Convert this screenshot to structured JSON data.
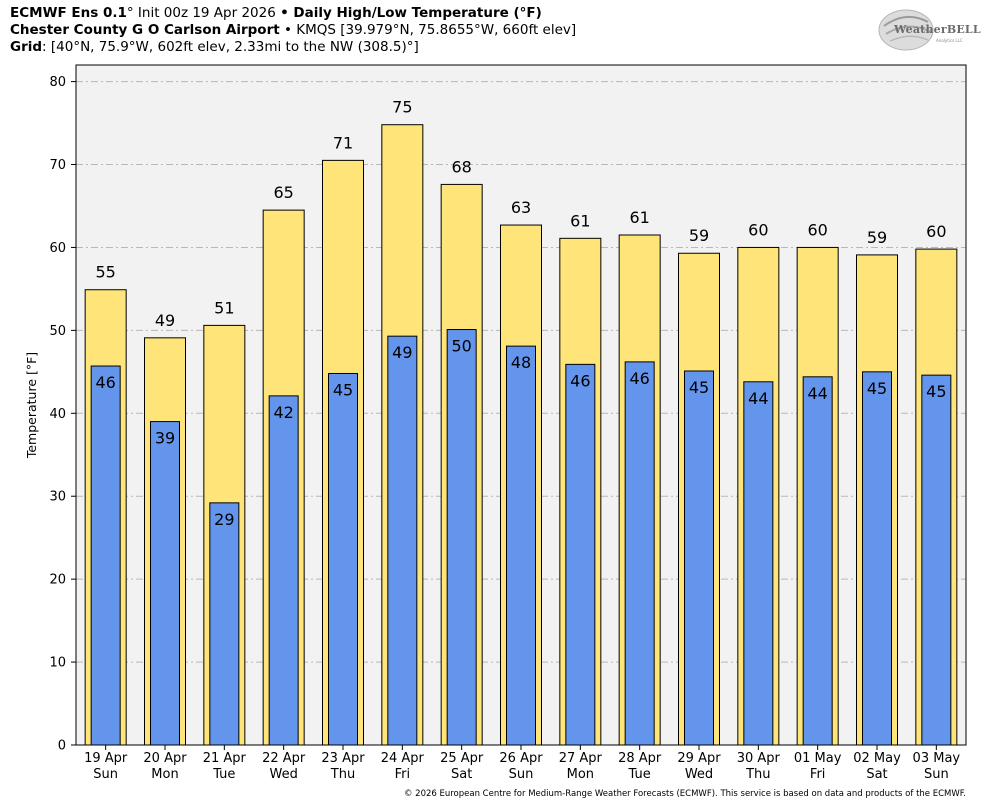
{
  "header": {
    "line1_model": "ECMWF Ens 0.1",
    "line1_deg": "°",
    "line1_init": " Init 00z 19 Apr 2026 ",
    "line1_bullet": "•",
    "line1_product": " Daily High/Low Temperature (°F)",
    "line2_station": "Chester County G O Carlson Airport",
    "line2_rest": " • KMQS [39.979°N, 75.8655°W, 660ft elev]",
    "line3_label": "Grid",
    "line3_rest": ": [40°N, 75.9°W, 602ft elev, 2.33mi to the NW (308.5)°]"
  },
  "logo": {
    "text": "WeatherBELL",
    "sub": "Analytics LLC"
  },
  "footer": "© 2026 European Centre for Medium-Range Weather Forecasts (ECMWF). This service is based on data and products of the ECMWF.",
  "colors": {
    "high_fill": "#ffe47a",
    "low_fill": "#6495ed",
    "plot_bg": "#f2f2f2",
    "grid": "#b8b8b8"
  },
  "chart_data": {
    "type": "bar",
    "title": "Daily High/Low Temperature (°F)",
    "ylabel": "Temperature [°F]",
    "xlabel": "",
    "ylim": [
      0,
      82
    ],
    "yticks": [
      0,
      10,
      20,
      30,
      40,
      50,
      60,
      70,
      80
    ],
    "grid": true,
    "categories": [
      {
        "date": "19 Apr",
        "day": "Sun"
      },
      {
        "date": "20 Apr",
        "day": "Mon"
      },
      {
        "date": "21 Apr",
        "day": "Tue"
      },
      {
        "date": "22 Apr",
        "day": "Wed"
      },
      {
        "date": "23 Apr",
        "day": "Thu"
      },
      {
        "date": "24 Apr",
        "day": "Fri"
      },
      {
        "date": "25 Apr",
        "day": "Sat"
      },
      {
        "date": "26 Apr",
        "day": "Sun"
      },
      {
        "date": "27 Apr",
        "day": "Mon"
      },
      {
        "date": "28 Apr",
        "day": "Tue"
      },
      {
        "date": "29 Apr",
        "day": "Wed"
      },
      {
        "date": "30 Apr",
        "day": "Thu"
      },
      {
        "date": "01 May",
        "day": "Fri"
      },
      {
        "date": "02 May",
        "day": "Sat"
      },
      {
        "date": "03 May",
        "day": "Sun"
      }
    ],
    "series": [
      {
        "name": "High",
        "values": [
          54.9,
          49.1,
          50.6,
          64.5,
          70.5,
          74.8,
          67.6,
          62.7,
          61.1,
          61.5,
          59.3,
          60.0,
          60.0,
          59.1,
          59.8
        ],
        "labels": [
          "55",
          "49",
          "51",
          "65",
          "71",
          "75",
          "68",
          "63",
          "61",
          "61",
          "59",
          "60",
          "60",
          "59",
          "60"
        ]
      },
      {
        "name": "Low",
        "values": [
          45.7,
          39.0,
          29.2,
          42.1,
          44.8,
          49.3,
          50.1,
          48.1,
          45.9,
          46.2,
          45.1,
          43.8,
          44.4,
          45.0,
          44.6
        ],
        "labels": [
          "46",
          "39",
          "29",
          "42",
          "45",
          "49",
          "50",
          "48",
          "46",
          "46",
          "45",
          "44",
          "44",
          "45",
          "45"
        ]
      }
    ]
  }
}
